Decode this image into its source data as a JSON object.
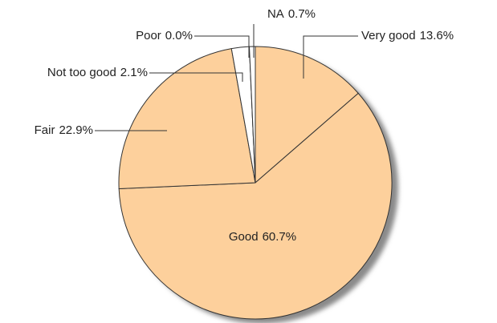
{
  "chart_data": {
    "type": "pie",
    "categories": [
      "Very good",
      "Good",
      "Fair",
      "Not too good",
      "Poor",
      "NA"
    ],
    "values": [
      13.6,
      60.7,
      22.9,
      2.1,
      0.0,
      0.7
    ],
    "value_labels": [
      "13.6%",
      "60.7%",
      "22.9%",
      "2.1%",
      "0.0%",
      "0.7%"
    ],
    "colors": [
      "#fdd09c",
      "#fdd09c",
      "#fdd09c",
      "#ffffff",
      "#ffffff",
      "#ffffff"
    ]
  }
}
